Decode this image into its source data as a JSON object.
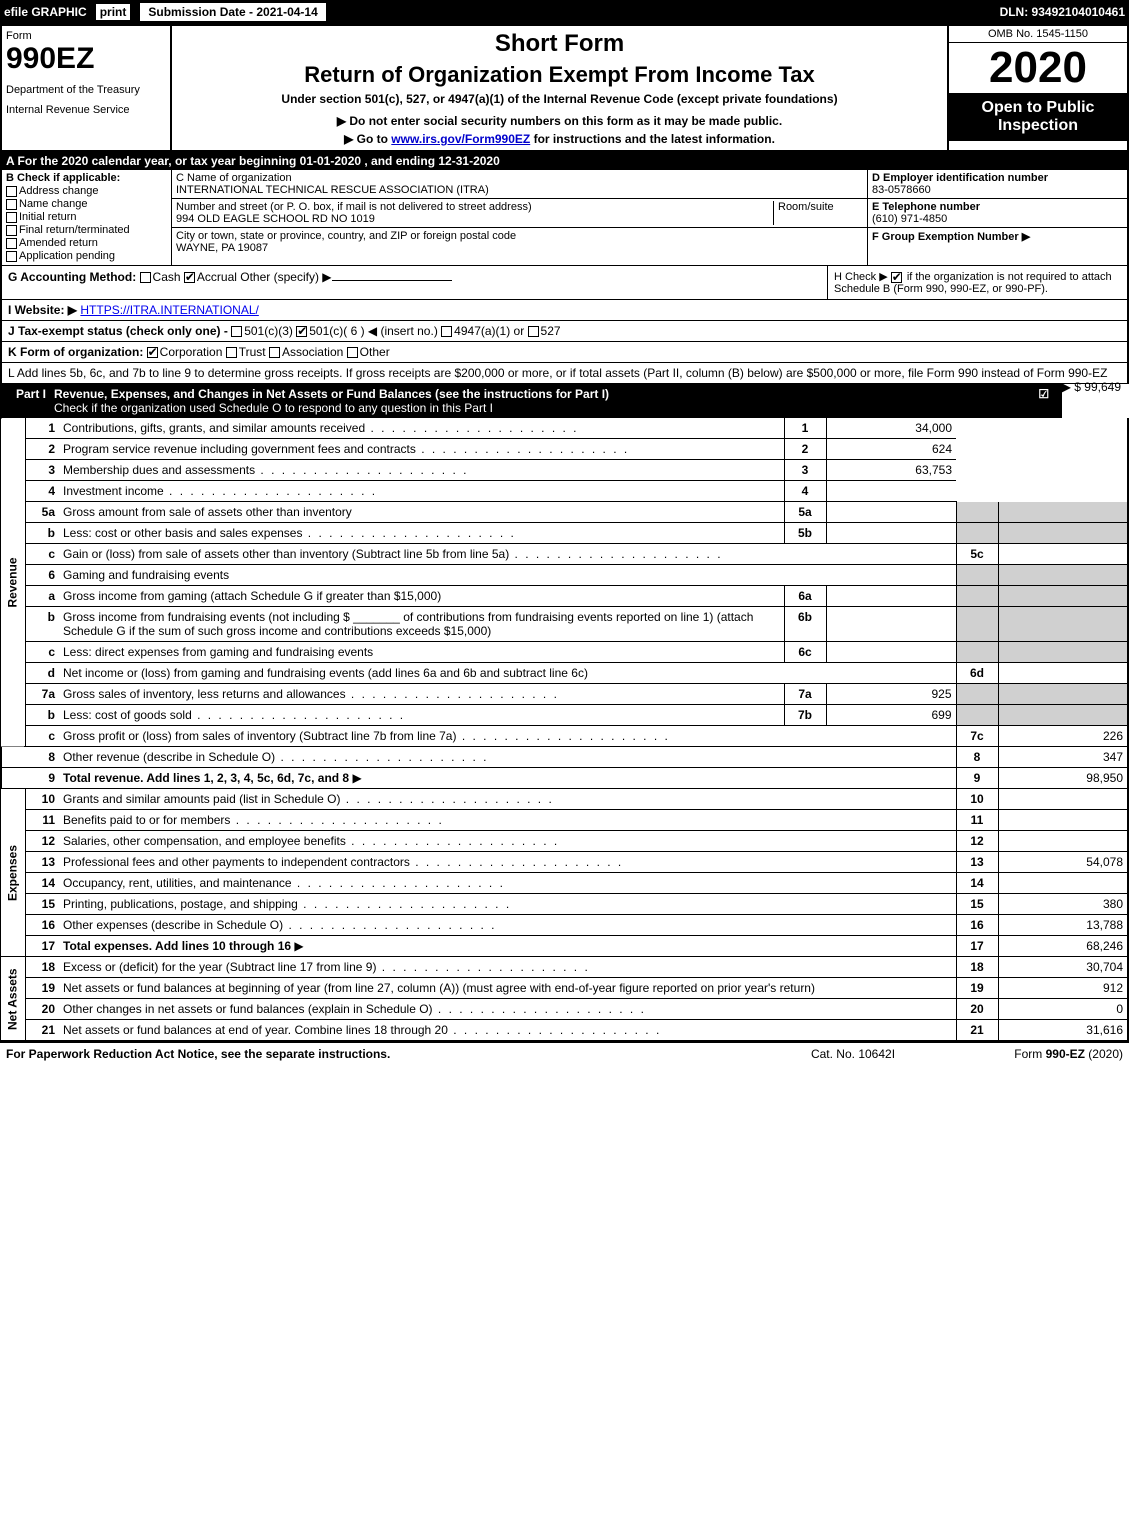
{
  "topbar": {
    "efile": "efile GRAPHIC",
    "print": "print",
    "submission_label": "Submission Date - 2021-04-14",
    "dln": "DLN: 93492104010461"
  },
  "header": {
    "form_word": "Form",
    "form_number": "990EZ",
    "dept": "Department of the Treasury",
    "irs": "Internal Revenue Service",
    "short_form": "Short Form",
    "title": "Return of Organization Exempt From Income Tax",
    "undersection": "Under section 501(c), 527, or 4947(a)(1) of the Internal Revenue Code (except private foundations)",
    "donot": "▶ Do not enter social security numbers on this form as it may be made public.",
    "goto_pre": "▶ Go to ",
    "goto_link": "www.irs.gov/Form990EZ",
    "goto_post": " for instructions and the latest information.",
    "omb": "OMB No. 1545-1150",
    "year": "2020",
    "open": "Open to Public Inspection"
  },
  "lineA": "A For the 2020 calendar year, or tax year beginning 01-01-2020 , and ending 12-31-2020",
  "boxB": {
    "title": "B Check if applicable:",
    "items": [
      "Address change",
      "Name change",
      "Initial return",
      "Final return/terminated",
      "Amended return",
      "Application pending"
    ]
  },
  "boxC": {
    "name_lbl": "C Name of organization",
    "name_val": "INTERNATIONAL TECHNICAL RESCUE ASSOCIATION (ITRA)",
    "street_lbl": "Number and street (or P. O. box, if mail is not delivered to street address)",
    "room_lbl": "Room/suite",
    "street_val": "994 OLD EAGLE SCHOOL RD NO 1019",
    "city_lbl": "City or town, state or province, country, and ZIP or foreign postal code",
    "city_val": "WAYNE, PA  19087"
  },
  "boxD": {
    "ein_lbl": "D Employer identification number",
    "ein_val": "83-0578660",
    "tel_lbl": "E Telephone number",
    "tel_val": "(610) 971-4850",
    "grp_lbl": "F Group Exemption Number  ▶"
  },
  "secG": {
    "label": "G Accounting Method:",
    "cash": "Cash",
    "accrual": "Accrual",
    "other": "Other (specify) ▶"
  },
  "secH": {
    "text1": "H Check ▶ ",
    "text2": " if the organization is not required to attach Schedule B (Form 990, 990-EZ, or 990-PF)."
  },
  "secI": {
    "label": "I Website: ▶",
    "val": "HTTPS://ITRA.INTERNATIONAL/"
  },
  "secJ": {
    "label": "J Tax-exempt status (check only one) -",
    "o1": "501(c)(3)",
    "o2": "501(c)( 6 ) ◀ (insert no.)",
    "o3": "4947(a)(1) or",
    "o4": "527"
  },
  "secK": {
    "label": "K Form of organization:",
    "corp": "Corporation",
    "trust": "Trust",
    "assoc": "Association",
    "other": "Other"
  },
  "secL": {
    "text": "L Add lines 5b, 6c, and 7b to line 9 to determine gross receipts. If gross receipts are $200,000 or more, or if total assets (Part II, column (B) below) are $500,000 or more, file Form 990 instead of Form 990-EZ",
    "amount": "▶ $ 99,649"
  },
  "part1": {
    "label": "Part I",
    "title": "Revenue, Expenses, and Changes in Net Assets or Fund Balances (see the instructions for Part I)",
    "checknote": "Check if the organization used Schedule O to respond to any question in this Part I",
    "checked": "☑"
  },
  "sidelabels": {
    "revenue": "Revenue",
    "expenses": "Expenses",
    "netassets": "Net Assets"
  },
  "lines": {
    "l1": {
      "n": "1",
      "d": "Contributions, gifts, grants, and similar amounts received",
      "v": "34,000"
    },
    "l2": {
      "n": "2",
      "d": "Program service revenue including government fees and contracts",
      "v": "624"
    },
    "l3": {
      "n": "3",
      "d": "Membership dues and assessments",
      "v": "63,753"
    },
    "l4": {
      "n": "4",
      "d": "Investment income",
      "v": ""
    },
    "l5a": {
      "n": "5a",
      "d": "Gross amount from sale of assets other than inventory",
      "sn": "5a",
      "sv": ""
    },
    "l5b": {
      "n": "b",
      "d": "Less: cost or other basis and sales expenses",
      "sn": "5b",
      "sv": ""
    },
    "l5c": {
      "n": "c",
      "d": "Gain or (loss) from sale of assets other than inventory (Subtract line 5b from line 5a)",
      "rn": "5c",
      "v": ""
    },
    "l6": {
      "n": "6",
      "d": "Gaming and fundraising events"
    },
    "l6a": {
      "n": "a",
      "d": "Gross income from gaming (attach Schedule G if greater than $15,000)",
      "sn": "6a",
      "sv": ""
    },
    "l6b": {
      "n": "b",
      "d": "Gross income from fundraising events (not including $ _______ of contributions from fundraising events reported on line 1) (attach Schedule G if the sum of such gross income and contributions exceeds $15,000)",
      "sn": "6b",
      "sv": ""
    },
    "l6c": {
      "n": "c",
      "d": "Less: direct expenses from gaming and fundraising events",
      "sn": "6c",
      "sv": ""
    },
    "l6d": {
      "n": "d",
      "d": "Net income or (loss) from gaming and fundraising events (add lines 6a and 6b and subtract line 6c)",
      "rn": "6d",
      "v": ""
    },
    "l7a": {
      "n": "7a",
      "d": "Gross sales of inventory, less returns and allowances",
      "sn": "7a",
      "sv": "925"
    },
    "l7b": {
      "n": "b",
      "d": "Less: cost of goods sold",
      "sn": "7b",
      "sv": "699"
    },
    "l7c": {
      "n": "c",
      "d": "Gross profit or (loss) from sales of inventory (Subtract line 7b from line 7a)",
      "rn": "7c",
      "v": "226"
    },
    "l8": {
      "n": "8",
      "d": "Other revenue (describe in Schedule O)",
      "v": "347"
    },
    "l9": {
      "n": "9",
      "d": "Total revenue. Add lines 1, 2, 3, 4, 5c, 6d, 7c, and 8",
      "v": "98,950",
      "bold": true
    },
    "l10": {
      "n": "10",
      "d": "Grants and similar amounts paid (list in Schedule O)",
      "v": ""
    },
    "l11": {
      "n": "11",
      "d": "Benefits paid to or for members",
      "v": ""
    },
    "l12": {
      "n": "12",
      "d": "Salaries, other compensation, and employee benefits",
      "v": ""
    },
    "l13": {
      "n": "13",
      "d": "Professional fees and other payments to independent contractors",
      "v": "54,078"
    },
    "l14": {
      "n": "14",
      "d": "Occupancy, rent, utilities, and maintenance",
      "v": ""
    },
    "l15": {
      "n": "15",
      "d": "Printing, publications, postage, and shipping",
      "v": "380"
    },
    "l16": {
      "n": "16",
      "d": "Other expenses (describe in Schedule O)",
      "v": "13,788"
    },
    "l17": {
      "n": "17",
      "d": "Total expenses. Add lines 10 through 16",
      "v": "68,246",
      "bold": true
    },
    "l18": {
      "n": "18",
      "d": "Excess or (deficit) for the year (Subtract line 17 from line 9)",
      "v": "30,704"
    },
    "l19": {
      "n": "19",
      "d": "Net assets or fund balances at beginning of year (from line 27, column (A)) (must agree with end-of-year figure reported on prior year's return)",
      "v": "912"
    },
    "l20": {
      "n": "20",
      "d": "Other changes in net assets or fund balances (explain in Schedule O)",
      "v": "0"
    },
    "l21": {
      "n": "21",
      "d": "Net assets or fund balances at end of year. Combine lines 18 through 20",
      "v": "31,616"
    }
  },
  "footer": {
    "left": "For Paperwork Reduction Act Notice, see the separate instructions.",
    "mid": "Cat. No. 10642I",
    "right": "Form 990-EZ (2020)"
  },
  "style": {
    "colors": {
      "black": "#000000",
      "white": "#ffffff",
      "shade": "#d0d0d0",
      "link": "#0000cc"
    },
    "fonts": {
      "base": 12,
      "formno": 30,
      "year": 44,
      "title": 22
    }
  }
}
